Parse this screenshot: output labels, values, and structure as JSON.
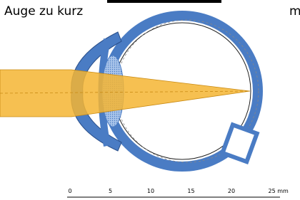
{
  "header": {
    "title": "Auge zu kurz",
    "cut_text": "m"
  },
  "scale": {
    "labels": [
      "0",
      "5",
      "10",
      "15",
      "20",
      "25 mm"
    ]
  }
}
